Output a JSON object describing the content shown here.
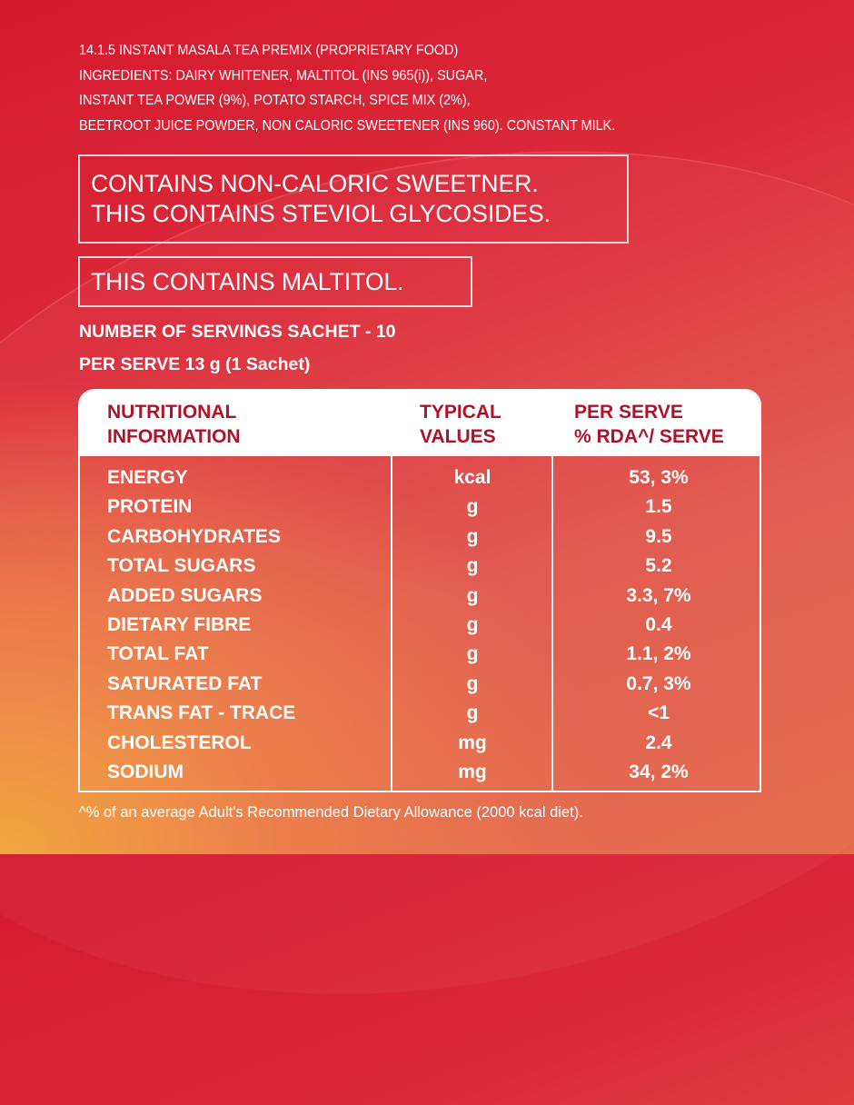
{
  "ingredients": [
    "14.1.5 INSTANT MASALA TEA PREMIX (PROPRIETARY FOOD)",
    "INGREDIENTS: DAIRY WHITENER, MALTITOL (INS 965(i)), SUGAR,",
    "INSTANT TEA POWER (9%), POTATO STARCH, SPICE MIX (2%),",
    "BEETROOT JUICE POWDER, NON CALORIC SWEETENER (INS 960). CONSTANT MILK."
  ],
  "warning1": [
    "CONTAINS NON-CALORIC SWEETNER.",
    "THIS CONTAINS STEVIOL GLYCOSIDES."
  ],
  "warning2": "THIS CONTAINS MALTITOL.",
  "servings": "NUMBER OF SERVINGS SACHET - 10",
  "per_serve": "PER SERVE 13 g (1 Sachet)",
  "table": {
    "headers": [
      [
        "NUTRITIONAL",
        "INFORMATION"
      ],
      [
        "TYPICAL",
        "VALUES"
      ],
      [
        "PER SERVE",
        "% RDA^/ SERVE"
      ]
    ],
    "rows": [
      [
        "ENERGY",
        "kcal",
        "53, 3%"
      ],
      [
        "PROTEIN",
        "g",
        "1.5"
      ],
      [
        "CARBOHYDRATES",
        "g",
        "9.5"
      ],
      [
        "TOTAL SUGARS",
        "g",
        "5.2"
      ],
      [
        "ADDED SUGARS",
        "g",
        "3.3, 7%"
      ],
      [
        "DIETARY FIBRE",
        "g",
        "0.4"
      ],
      [
        "TOTAL FAT",
        "g",
        "1.1, 2%"
      ],
      [
        "SATURATED FAT",
        "g",
        "0.7, 3%"
      ],
      [
        "TRANS FAT  - TRACE",
        "g",
        "<1"
      ],
      [
        "CHOLESTEROL",
        "mg",
        "2.4"
      ],
      [
        "SODIUM",
        "mg",
        "34, 2%"
      ]
    ]
  },
  "footnote": "^% of an average Adult's Recommended Dietary Allowance (2000 kcal diet).",
  "colors": {
    "header_text": "#b01228",
    "background_top": "#d4182e",
    "background_bottom_left": "#f2a33a"
  }
}
